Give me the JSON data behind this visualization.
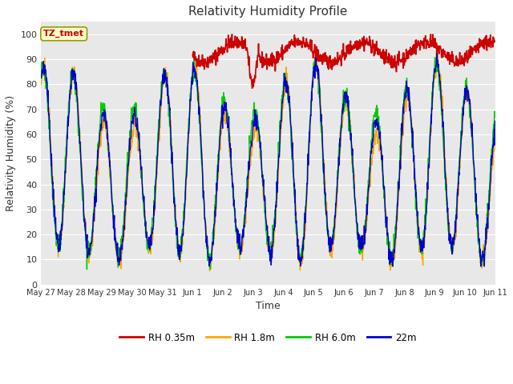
{
  "title": "Relativity Humidity Profile",
  "xlabel": "Time",
  "ylabel": "Relativity Humidity (%)",
  "ylim": [
    0,
    105
  ],
  "yticks": [
    0,
    10,
    20,
    30,
    40,
    50,
    60,
    70,
    80,
    90,
    100
  ],
  "annotation_label": "TZ_tmet",
  "annotation_color": "#cc0000",
  "annotation_bg": "#ffffcc",
  "annotation_edge": "#999900",
  "fig_bg_color": "#ffffff",
  "plot_bg_color": "#e8e8e8",
  "grid_color": "#ffffff",
  "colors": {
    "RH 0.35m": "#cc0000",
    "RH 1.8m": "#ffa500",
    "RH 6.0m": "#00cc00",
    "22m": "#0000cc"
  },
  "xtick_labels": [
    "May 27",
    "May 28",
    "May 29",
    "May 30",
    "May 31",
    "Jun 1",
    "Jun 2",
    "Jun 3",
    "Jun 4",
    "Jun 5",
    "Jun 6",
    "Jun 7",
    "Jun 8",
    "Jun 9",
    "Jun 10",
    "Jun 11"
  ],
  "n_days": 15,
  "figsize": [
    6.4,
    4.8
  ],
  "dpi": 100
}
